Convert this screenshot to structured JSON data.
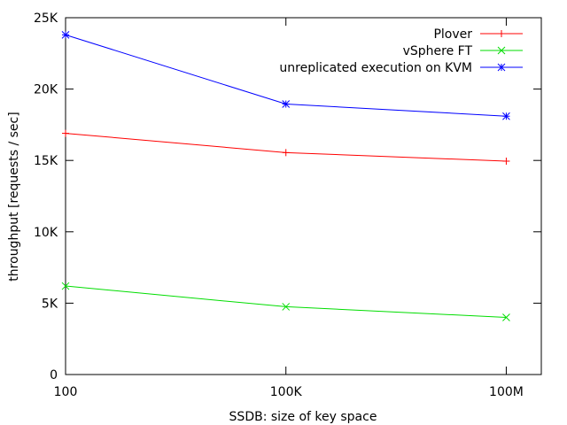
{
  "chart_data": {
    "type": "line",
    "xlabel": "SSDB: size of key space",
    "ylabel": "throughput [requests / sec]",
    "x_scale": "log",
    "x_ticks": [
      {
        "value": 100,
        "label": "100"
      },
      {
        "value": 100000,
        "label": "100K"
      },
      {
        "value": 100000000,
        "label": "100M"
      }
    ],
    "xlim": [
      100,
      300000000
    ],
    "y_ticks": [
      {
        "value": 0,
        "label": "0"
      },
      {
        "value": 5000,
        "label": "5K"
      },
      {
        "value": 10000,
        "label": "10K"
      },
      {
        "value": 15000,
        "label": "15K"
      },
      {
        "value": 20000,
        "label": "20K"
      },
      {
        "value": 25000,
        "label": "25K"
      }
    ],
    "ylim": [
      0,
      25000
    ],
    "grid": false,
    "legend_position": "top-right",
    "x": [
      100,
      100000,
      100000000
    ],
    "series": [
      {
        "name": "Plover",
        "values": [
          16900,
          15550,
          14950
        ],
        "color": "#ff0000",
        "marker": "plus"
      },
      {
        "name": "vSphere FT",
        "values": [
          6200,
          4750,
          4000
        ],
        "color": "#00dd00",
        "marker": "cross"
      },
      {
        "name": "unreplicated execution on KVM",
        "values": [
          23800,
          18950,
          18100
        ],
        "color": "#0000ff",
        "marker": "star"
      }
    ]
  }
}
